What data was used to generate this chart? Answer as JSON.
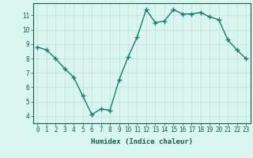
{
  "x": [
    0,
    1,
    2,
    3,
    4,
    5,
    6,
    7,
    8,
    9,
    10,
    11,
    12,
    13,
    14,
    15,
    16,
    17,
    18,
    19,
    20,
    21,
    22,
    23
  ],
  "y": [
    8.8,
    8.6,
    8.0,
    7.3,
    6.7,
    5.4,
    4.1,
    4.5,
    4.4,
    6.5,
    8.1,
    9.5,
    11.4,
    10.5,
    10.6,
    11.4,
    11.1,
    11.1,
    11.2,
    10.9,
    10.7,
    9.3,
    8.6,
    8.0
  ],
  "line_color": "#1a7a6e",
  "marker": "+",
  "marker_size": 4,
  "bg_color": "#d8f5f0",
  "grid_color": "#c0ddd8",
  "xlabel": "Humidex (Indice chaleur)",
  "xlim": [
    -0.5,
    23.5
  ],
  "ylim": [
    3.5,
    11.85
  ],
  "yticks": [
    4,
    5,
    6,
    7,
    8,
    9,
    10,
    11
  ],
  "xticks": [
    0,
    1,
    2,
    3,
    4,
    5,
    6,
    7,
    8,
    9,
    10,
    11,
    12,
    13,
    14,
    15,
    16,
    17,
    18,
    19,
    20,
    21,
    22,
    23
  ],
  "title_color": "#1a5a50",
  "axis_color": "#1a5a50",
  "label_fontsize": 6.5,
  "tick_fontsize": 5.5,
  "linewidth": 1.0
}
